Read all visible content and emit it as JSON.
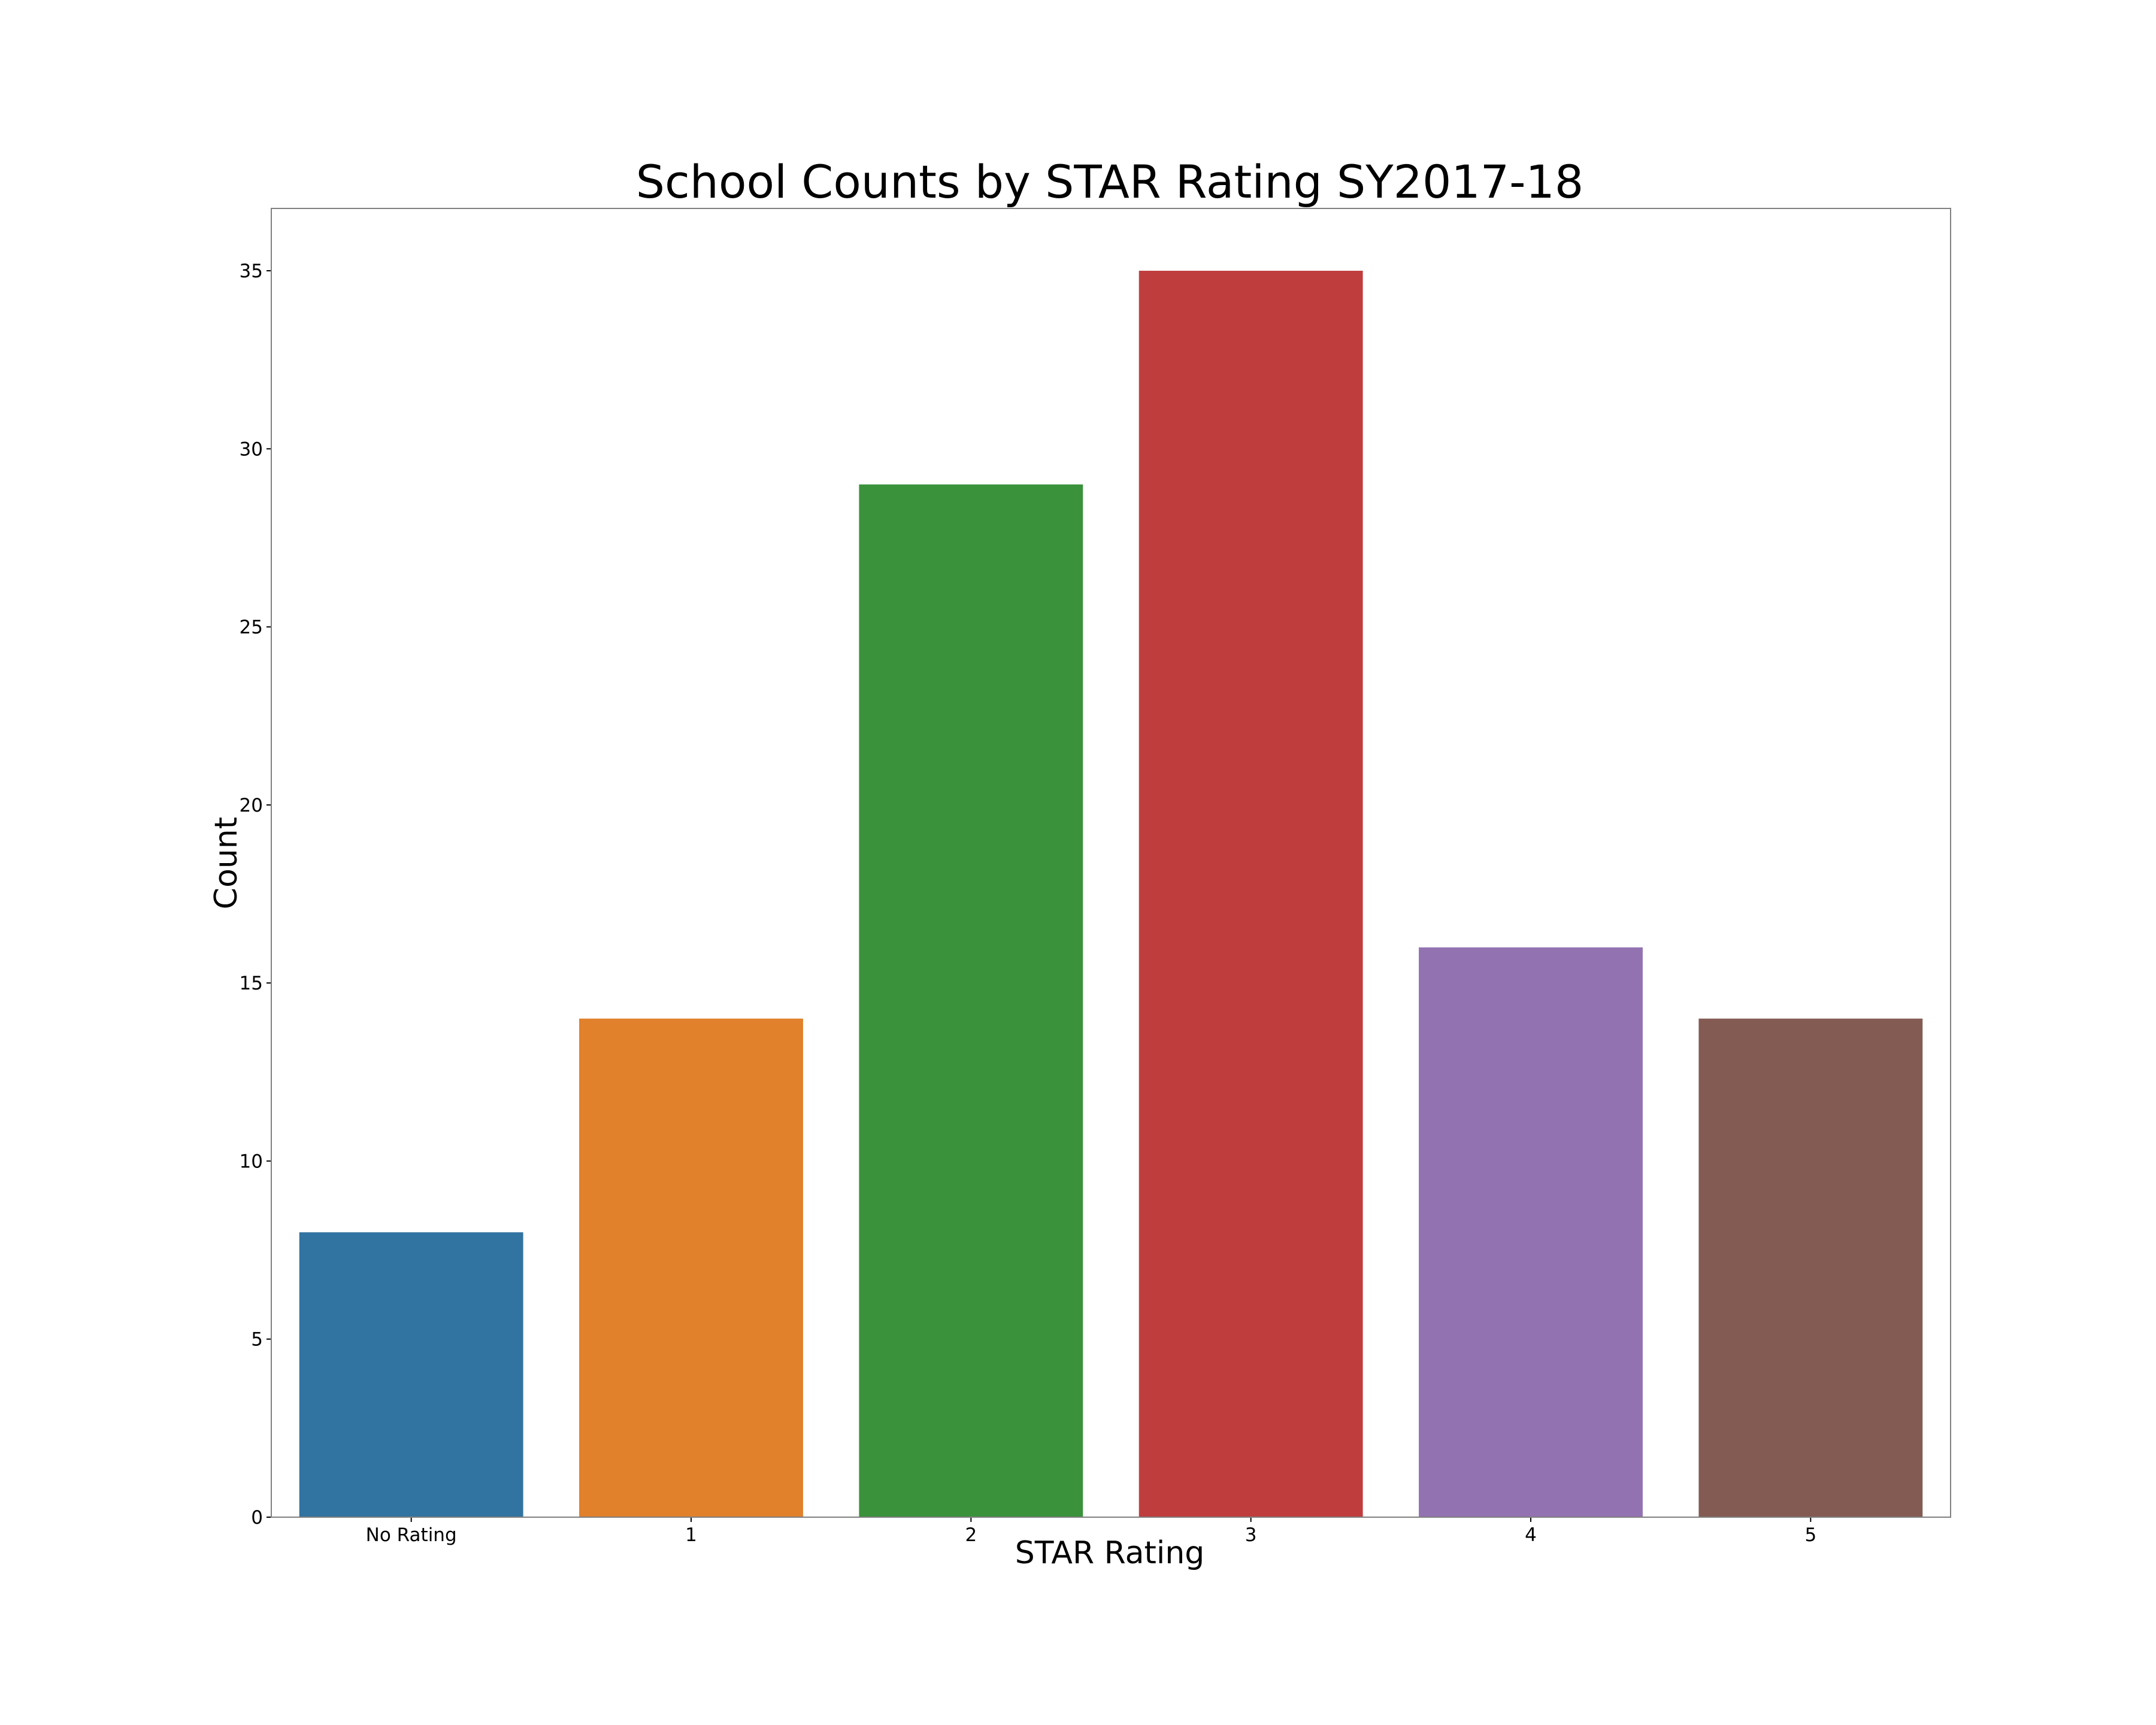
{
  "chart_data": {
    "type": "bar",
    "title": "School Counts by STAR Rating SY2017-18",
    "xlabel": "STAR Rating",
    "ylabel": "Count",
    "categories": [
      "No Rating",
      "1",
      "2",
      "3",
      "4",
      "5"
    ],
    "values": [
      8,
      14,
      29,
      35,
      16,
      14
    ],
    "colors": [
      "#3274a1",
      "#e1812c",
      "#3a923a",
      "#c03d3e",
      "#9372b2",
      "#845b53"
    ],
    "ylim": [
      0,
      36.75
    ],
    "yticks": [
      0,
      5,
      10,
      15,
      20,
      25,
      30,
      35
    ],
    "grid": false,
    "legend": "none"
  }
}
